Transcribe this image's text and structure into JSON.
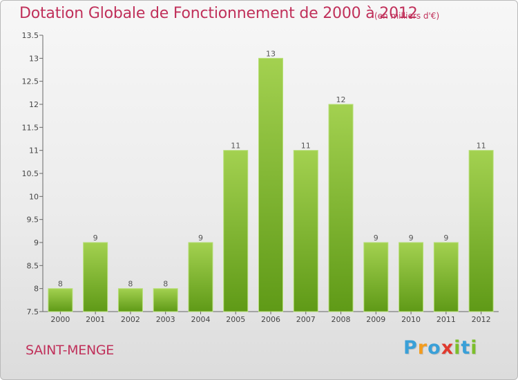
{
  "header": {
    "title": "Dotation Globale de Fonctionnement de 2000 à 2012",
    "unit": "(en milliers d'€)"
  },
  "footer": {
    "place": "SAINT-MENGE",
    "logo": [
      "P",
      "r",
      "o",
      "x",
      "i",
      "t",
      "i"
    ],
    "logo_colors": [
      "#3aa0d8",
      "#f39c1e",
      "#3aa0d8",
      "#e03a2e",
      "#7cbf2b",
      "#3aa0d8",
      "#7cbf2b"
    ]
  },
  "colors": {
    "bar_top": "#a3d150",
    "bar_bottom": "#5f9a17",
    "title": "#c0305a"
  },
  "chart_data": {
    "type": "bar",
    "title": "Dotation Globale de Fonctionnement de 2000 à 2012",
    "subtitle": "(en milliers d'€)",
    "categories": [
      "2000",
      "2001",
      "2002",
      "2003",
      "2004",
      "2005",
      "2006",
      "2007",
      "2008",
      "2009",
      "2010",
      "2011",
      "2012"
    ],
    "values": [
      8,
      9,
      8,
      8,
      9,
      11,
      13,
      11,
      12,
      9,
      9,
      9,
      11
    ],
    "ylim": [
      7.5,
      13.5
    ],
    "yticks": [
      "7.5",
      "8",
      "8.5",
      "9",
      "9.5",
      "10",
      "10.5",
      "11",
      "11.5",
      "12",
      "12.5",
      "13",
      "13.5"
    ],
    "grid": false,
    "legend": "none"
  }
}
